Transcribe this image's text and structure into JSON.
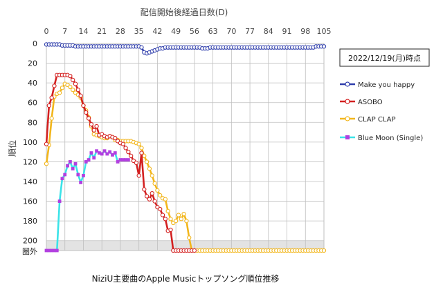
{
  "chart_data": {
    "type": "line",
    "title": "NiziU主要曲のApple Musicトップソング順位推移",
    "xlabel": "配信開始後経過日数(D)",
    "ylabel": "順位",
    "x_ticks": [
      0,
      7,
      14,
      21,
      28,
      35,
      42,
      49,
      56,
      63,
      70,
      77,
      84,
      91,
      98,
      105
    ],
    "xlim": [
      0,
      105
    ],
    "y_ticks": [
      0,
      20,
      40,
      60,
      80,
      100,
      120,
      140,
      160,
      180,
      200
    ],
    "ylim": [
      0,
      210
    ],
    "y_reversed": true,
    "out_of_chart_label": "圏外",
    "out_of_chart_value": 210,
    "out_of_chart_band": [
      200,
      210
    ],
    "date_note": "2022/12/19(月)時点",
    "legend_position": "right",
    "series": [
      {
        "name": "Make you happy",
        "color": "#2E3DAB",
        "marker": "circle",
        "x": [
          0,
          1,
          2,
          3,
          4,
          5,
          6,
          7,
          8,
          9,
          10,
          11,
          12,
          13,
          14,
          15,
          16,
          17,
          18,
          19,
          20,
          21,
          22,
          23,
          24,
          25,
          26,
          27,
          28,
          29,
          30,
          31,
          32,
          33,
          34,
          35,
          36,
          37,
          38,
          39,
          40,
          41,
          42,
          43,
          44,
          45,
          46,
          47,
          48,
          49,
          50,
          51,
          52,
          53,
          54,
          55,
          56,
          57,
          58,
          59,
          60,
          61,
          62,
          63,
          64,
          65,
          66,
          67,
          68,
          69,
          70,
          71,
          72,
          73,
          74,
          75,
          76,
          77,
          78,
          79,
          80,
          81,
          82,
          83,
          84,
          85,
          86,
          87,
          88,
          89,
          90,
          91,
          92,
          93,
          94,
          95,
          96,
          97,
          98,
          99,
          100,
          101,
          102,
          103,
          104,
          105
        ],
        "y": [
          1,
          1,
          1,
          1,
          1,
          1,
          2,
          2,
          2,
          2,
          2,
          3,
          3,
          3,
          3,
          3,
          3,
          3,
          3,
          3,
          3,
          3,
          3,
          3,
          3,
          3,
          3,
          3,
          3,
          3,
          3,
          3,
          3,
          3,
          3,
          3,
          4,
          9,
          10,
          9,
          8,
          7,
          6,
          5,
          5,
          4,
          4,
          4,
          4,
          4,
          4,
          4,
          4,
          4,
          4,
          4,
          4,
          4,
          4,
          5,
          5,
          5,
          4,
          4,
          4,
          4,
          4,
          4,
          4,
          4,
          4,
          4,
          4,
          4,
          4,
          4,
          4,
          4,
          4,
          4,
          4,
          4,
          4,
          4,
          4,
          4,
          4,
          4,
          4,
          4,
          4,
          4,
          4,
          4,
          4,
          4,
          4,
          4,
          4,
          4,
          4,
          4,
          3,
          3,
          3,
          3
        ]
      },
      {
        "name": "ASOBO",
        "color": "#D32020",
        "marker": "circle",
        "x": [
          0,
          1,
          2,
          3,
          4,
          5,
          6,
          7,
          8,
          9,
          10,
          11,
          12,
          13,
          14,
          15,
          16,
          17,
          18,
          19,
          20,
          21,
          22,
          23,
          24,
          25,
          26,
          27,
          28,
          29,
          30,
          31,
          32,
          33,
          34,
          35,
          36,
          37,
          38,
          39,
          40,
          41,
          42,
          43,
          44,
          45,
          46,
          47,
          48,
          49,
          50,
          51,
          52,
          53,
          54,
          55,
          56
        ],
        "y": [
          102,
          63,
          55,
          43,
          32,
          32,
          32,
          32,
          32,
          33,
          37,
          41,
          47,
          53,
          63,
          70,
          76,
          82,
          88,
          84,
          93,
          92,
          94,
          95,
          94,
          95,
          96,
          99,
          101,
          102,
          106,
          110,
          114,
          119,
          121,
          134,
          111,
          148,
          155,
          158,
          152,
          160,
          166,
          168,
          174,
          178,
          190,
          189,
          210,
          210,
          210,
          210,
          210,
          210,
          210,
          210,
          210
        ]
      },
      {
        "name": "CLAP CLAP",
        "color": "#F2B61C",
        "marker": "circle",
        "x": [
          0,
          1,
          2,
          3,
          4,
          5,
          6,
          7,
          8,
          9,
          10,
          11,
          12,
          13,
          14,
          15,
          16,
          17,
          18,
          19,
          20,
          21,
          22,
          23,
          24,
          25,
          26,
          27,
          28,
          29,
          30,
          31,
          32,
          33,
          34,
          35,
          36,
          37,
          38,
          39,
          40,
          41,
          42,
          43,
          44,
          45,
          46,
          47,
          48,
          49,
          50,
          51,
          52,
          53,
          54,
          55,
          56,
          57,
          58,
          59,
          60,
          61,
          62,
          63,
          64,
          65,
          66,
          67,
          68,
          69,
          70,
          71,
          72,
          73,
          74,
          75,
          76,
          77,
          78,
          79,
          80,
          81,
          82,
          83,
          84,
          85,
          86,
          87,
          88,
          89,
          90,
          91,
          92,
          93,
          94,
          95,
          96,
          97,
          98,
          99,
          100,
          101,
          102,
          103,
          104,
          105
        ],
        "y": [
          122,
          103,
          76,
          54,
          51,
          50,
          45,
          41,
          42,
          44,
          47,
          50,
          52,
          55,
          63,
          68,
          75,
          84,
          92,
          93,
          94,
          95,
          96,
          96,
          94,
          95,
          98,
          98,
          99,
          99,
          99,
          99,
          99,
          100,
          101,
          102,
          106,
          114,
          120,
          127,
          134,
          142,
          149,
          154,
          157,
          158,
          170,
          178,
          182,
          180,
          174,
          178,
          173,
          180,
          197,
          210,
          210,
          210,
          210,
          210,
          210,
          210,
          210,
          210,
          210,
          210,
          210,
          210,
          210,
          210,
          210,
          210,
          210,
          210,
          210,
          210,
          210,
          210,
          210,
          210,
          210,
          210,
          210,
          210,
          210,
          210,
          210,
          210,
          210,
          210,
          210,
          210,
          210,
          210,
          210,
          210,
          210,
          210,
          210,
          210,
          210,
          210,
          210,
          210,
          210,
          210
        ]
      },
      {
        "name": "Blue Moon (Single)",
        "color": "#3BE3E8",
        "marker": "square",
        "marker_color": "#B23FE0",
        "x": [
          0,
          1,
          2,
          3,
          4,
          5,
          6,
          7,
          8,
          9,
          10,
          11,
          12,
          13,
          14,
          15,
          16,
          17,
          18,
          19,
          20,
          21,
          22,
          23,
          24,
          25,
          26,
          27,
          28,
          29,
          30,
          31
        ],
        "y": [
          210,
          210,
          210,
          210,
          210,
          160,
          137,
          133,
          124,
          120,
          127,
          122,
          133,
          141,
          134,
          120,
          118,
          111,
          116,
          109,
          111,
          112,
          109,
          112,
          110,
          113,
          111,
          120,
          118,
          118,
          118,
          118
        ]
      }
    ]
  }
}
